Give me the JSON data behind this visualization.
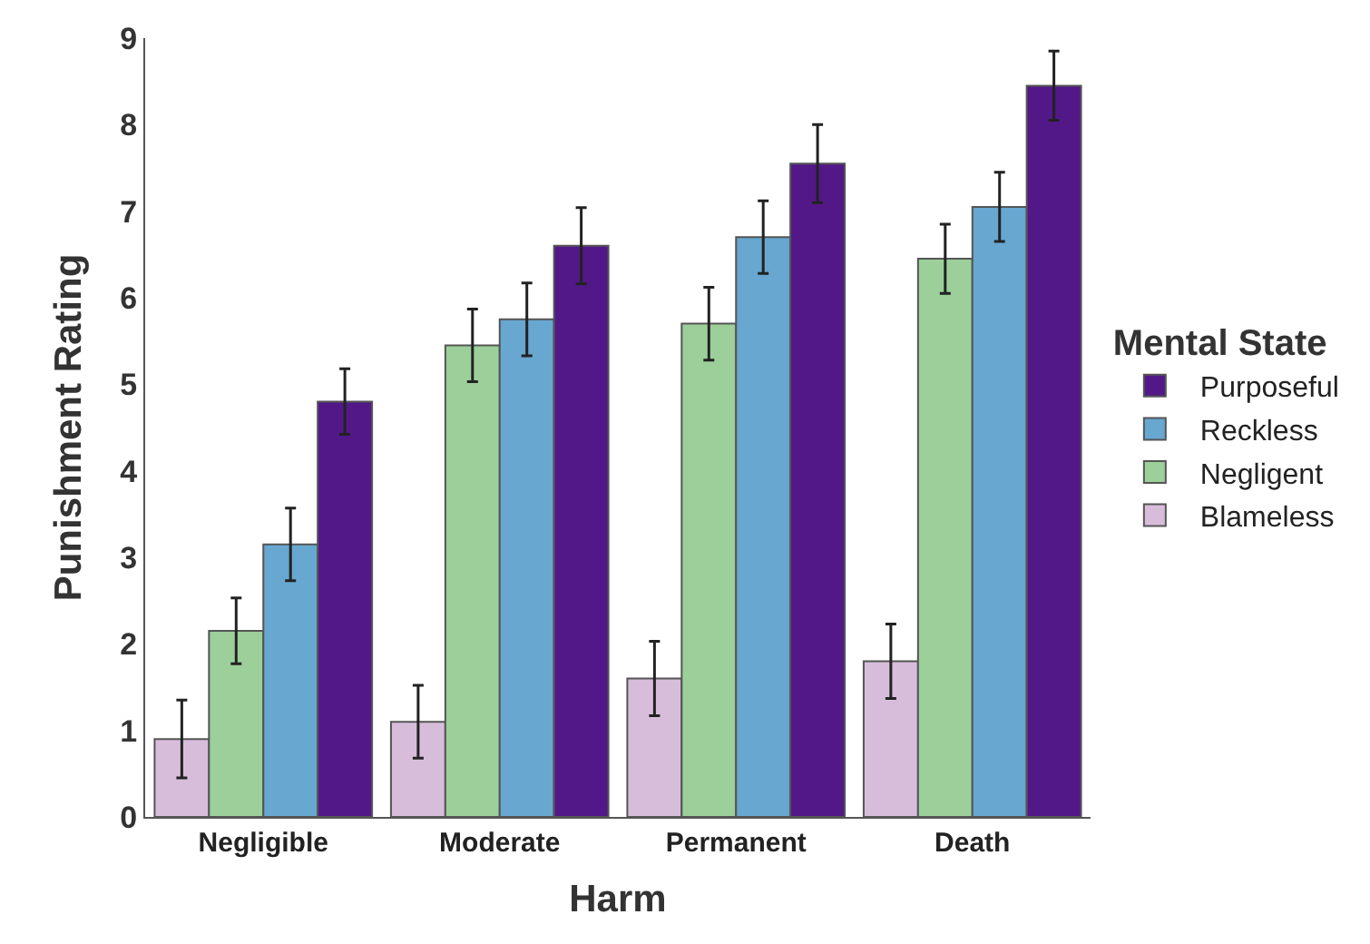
{
  "chart_data": {
    "type": "bar",
    "xlabel": "Harm",
    "ylabel": "Punishment Rating",
    "legend_title": "Mental State",
    "categories": [
      "Negligible",
      "Moderate",
      "Permanent",
      "Death"
    ],
    "series": [
      {
        "name": "Blameless",
        "color": "#d8bddb",
        "values": [
          0.9,
          1.1,
          1.6,
          1.8
        ],
        "errors": [
          0.45,
          0.42,
          0.43,
          0.43
        ]
      },
      {
        "name": "Negligent",
        "color": "#9ccf9a",
        "values": [
          2.15,
          5.45,
          5.7,
          6.45
        ],
        "errors": [
          0.38,
          0.42,
          0.42,
          0.4
        ]
      },
      {
        "name": "Reckless",
        "color": "#67a7d0",
        "values": [
          3.15,
          5.75,
          6.7,
          7.05
        ],
        "errors": [
          0.42,
          0.42,
          0.42,
          0.4
        ]
      },
      {
        "name": "Purposeful",
        "color": "#531888",
        "values": [
          4.8,
          6.6,
          7.55,
          8.45
        ],
        "errors": [
          0.38,
          0.44,
          0.45,
          0.4
        ]
      }
    ],
    "ylim": [
      0,
      9
    ],
    "yticks": [
      0,
      1,
      2,
      3,
      4,
      5,
      6,
      7,
      8,
      9
    ],
    "legend": "right"
  }
}
